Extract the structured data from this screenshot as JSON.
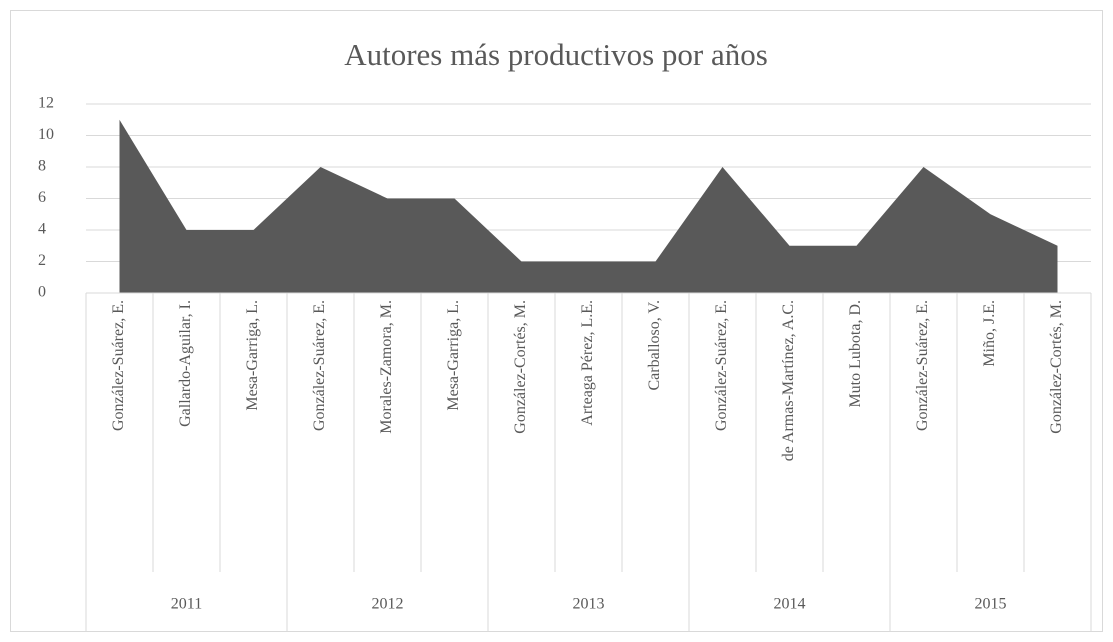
{
  "chart_data": {
    "type": "area",
    "title": "Autores más productivos por años",
    "categories": [
      "González-Suárez, E.",
      "Gallardo-Aguilar, I.",
      "Mesa-Garriga, L.",
      "González-Suárez, E.",
      "Morales-Zamora, M.",
      "Mesa-Garriga, L.",
      "González-Cortés, M.",
      "Arteaga Pérez, L.E.",
      "Carballoso, V.",
      "González-Suárez, E.",
      "de Armas-Martínez, A.C.",
      "Muto Lubota, D.",
      "González-Suárez, E.",
      "Miño, J.E.",
      "González-Cortés, M."
    ],
    "groups": [
      "2011",
      "2012",
      "2013",
      "2014",
      "2015"
    ],
    "values": [
      11,
      4,
      4,
      8,
      6,
      6,
      2,
      2,
      2,
      8,
      3,
      3,
      8,
      5,
      3
    ],
    "color": "#595959",
    "ylim": [
      0,
      12
    ],
    "yticks": [
      0,
      2,
      4,
      6,
      8,
      10,
      12
    ],
    "grid": true
  }
}
